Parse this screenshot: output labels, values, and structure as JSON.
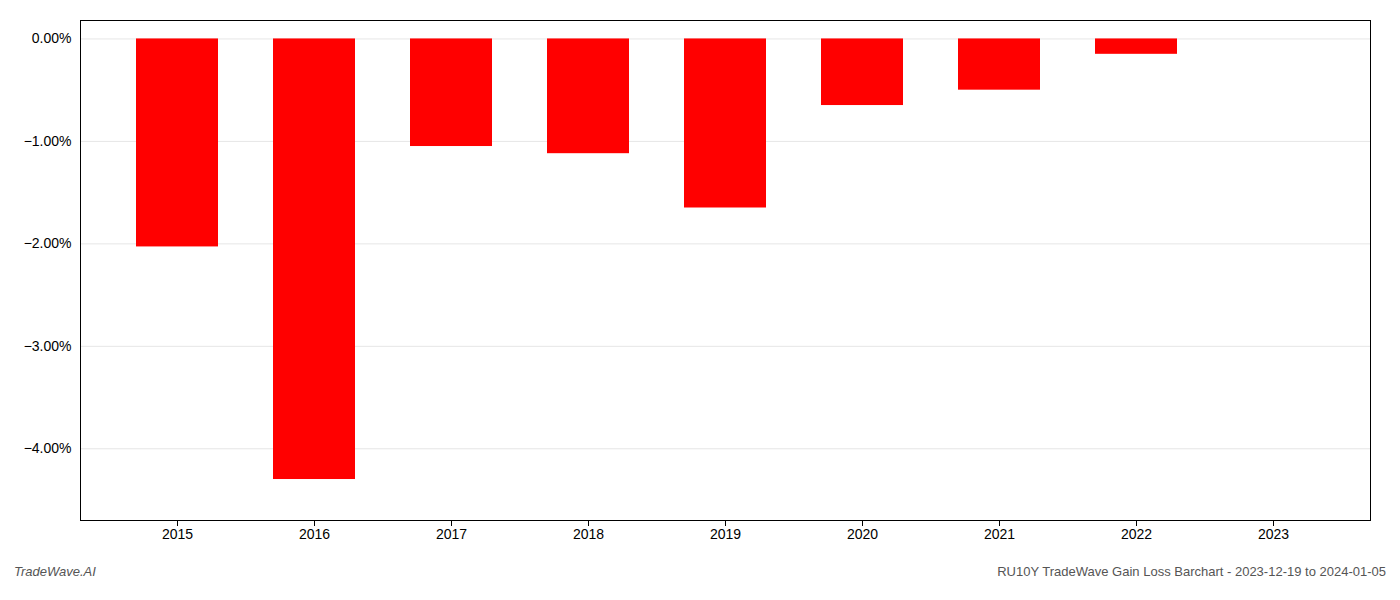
{
  "chart_data": {
    "type": "bar",
    "categories": [
      "2015",
      "2016",
      "2017",
      "2018",
      "2019",
      "2020",
      "2021",
      "2022",
      "2023"
    ],
    "values": [
      -2.03,
      -4.3,
      -1.05,
      -1.12,
      -1.65,
      -0.65,
      -0.5,
      -0.15,
      0.0
    ],
    "color": "#ff0000",
    "ylim": [
      -4.7,
      0.18
    ],
    "yticks": [
      {
        "value": 0.0,
        "label": "0.00%"
      },
      {
        "value": -1.0,
        "label": "−1.00%"
      },
      {
        "value": -2.0,
        "label": "−2.00%"
      },
      {
        "value": -3.0,
        "label": "−3.00%"
      },
      {
        "value": -4.0,
        "label": "−4.00%"
      }
    ],
    "grid": true,
    "annotations": [
      "TradeWave.AI",
      "RU10Y TradeWave Gain Loss Barchart - 2023-12-19 to 2024-01-05"
    ]
  }
}
